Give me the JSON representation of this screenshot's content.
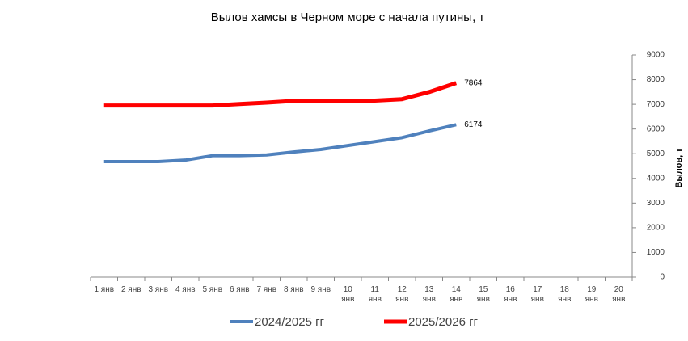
{
  "chart_data": {
    "type": "line",
    "title": "Вылов хамсы в Черном море с начала путины, т",
    "categories": [
      "1 янв",
      "2 янв",
      "3 янв",
      "4 янв",
      "5 янв",
      "6 янв",
      "7 янв",
      "8 янв",
      "9 янв",
      "10 янв",
      "11 янв",
      "12 янв",
      "13 янв",
      "14 янв",
      "15 янв",
      "16 янв",
      "17 янв",
      "18 янв",
      "19 янв",
      "20 янв"
    ],
    "series": [
      {
        "name": "2024/2025 гг",
        "color": "#4f81bd",
        "values": [
          4680,
          4680,
          4680,
          4740,
          4920,
          4920,
          4950,
          5070,
          5170,
          5330,
          5490,
          5650,
          5920,
          6174,
          null,
          null,
          null,
          null,
          null,
          null
        ]
      },
      {
        "name": "2025/2026 гг",
        "color": "#ff0000",
        "values": [
          6950,
          6950,
          6950,
          6950,
          6950,
          7010,
          7070,
          7140,
          7140,
          7150,
          7150,
          7210,
          7500,
          7864,
          null,
          null,
          null,
          null,
          null,
          null
        ]
      }
    ],
    "y_label": "Вылов, т",
    "ylim": [
      0,
      9000
    ],
    "yticks": [
      0,
      1000,
      2000,
      3000,
      4000,
      5000,
      6000,
      7000,
      8000,
      9000
    ],
    "y_axis_side": "right",
    "legend": "bottom",
    "grid": false
  }
}
